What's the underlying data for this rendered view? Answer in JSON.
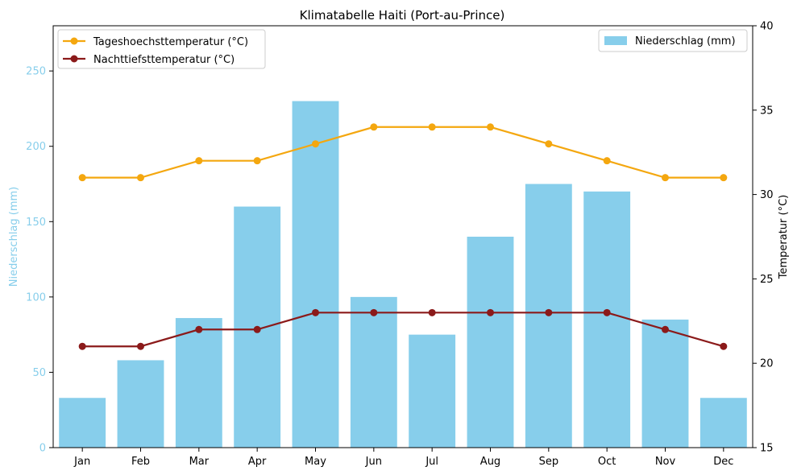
{
  "chart_data": {
    "type": "bar",
    "title": "Klimatabelle Haiti (Port-au-Prince)",
    "categories": [
      "Jan",
      "Feb",
      "Mar",
      "Apr",
      "May",
      "Jun",
      "Jul",
      "Aug",
      "Sep",
      "Oct",
      "Nov",
      "Dec"
    ],
    "left_axis": {
      "label": "Niederschlag (mm)",
      "ylim": [
        0,
        280
      ],
      "ticks": [
        0,
        50,
        100,
        150,
        200,
        250
      ],
      "color": "#87ceeb"
    },
    "right_axis": {
      "label": "Temperatur (°C)",
      "ylim": [
        15,
        40
      ],
      "ticks": [
        15,
        20,
        25,
        30,
        35,
        40
      ],
      "color": "#000000"
    },
    "bars": {
      "name": "Niederschlag (mm)",
      "color": "#87ceeb",
      "values": [
        33,
        58,
        86,
        160,
        230,
        100,
        75,
        140,
        175,
        170,
        85,
        33
      ]
    },
    "lines": [
      {
        "name": "Tageshoechsttemperatur (°C)",
        "color": "#f4a70f",
        "values": [
          31,
          31,
          32,
          32,
          33,
          34,
          34,
          34,
          33,
          32,
          31,
          31
        ]
      },
      {
        "name": "Nachttiefsttemperatur (°C)",
        "color": "#8b1a1a",
        "values": [
          21,
          21,
          22,
          22,
          23,
          23,
          23,
          23,
          23,
          23,
          22,
          21
        ]
      }
    ],
    "legend_lines_position": "upper-left",
    "legend_bars_position": "upper-right",
    "grid": false
  }
}
